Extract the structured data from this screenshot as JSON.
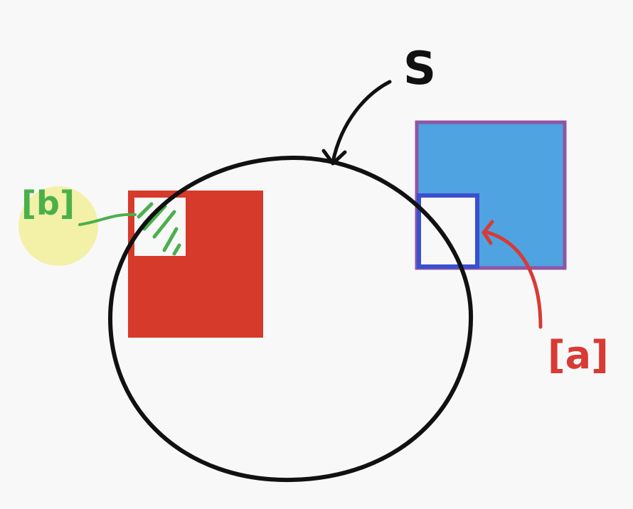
{
  "diagram": {
    "labels": {
      "set_label": "S",
      "label_a": "[a]",
      "label_b": "[b]"
    },
    "colors": {
      "background": "#f8f8f9",
      "circle_stroke": "#111111",
      "red_square": "#d63a2b",
      "blue_square": "#4ea3e0",
      "blue_border": "#8e56a6",
      "inner_box_border": "#3c4fcf",
      "label_a_color": "#d93a33",
      "label_b_color": "#4ab04a",
      "highlight": "#f2ef9a",
      "arrow_black": "#111111"
    },
    "icons": {
      "circle": "set-circle",
      "arrow_s": "curved-arrow",
      "arrow_a": "curved-arrow",
      "hatch": "green-hatching"
    }
  }
}
